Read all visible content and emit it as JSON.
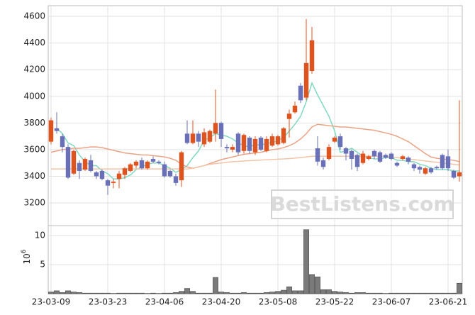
{
  "chart_data": {
    "type": "candlestick",
    "categories": [
      "23-03-09",
      null,
      null,
      null,
      null,
      null,
      null,
      null,
      null,
      null,
      "23-03-23",
      null,
      null,
      null,
      null,
      null,
      null,
      null,
      null,
      null,
      "23-04-06",
      null,
      null,
      null,
      null,
      null,
      null,
      null,
      null,
      null,
      "23-04-20",
      null,
      null,
      null,
      null,
      null,
      null,
      null,
      null,
      null,
      "23-05-08",
      null,
      null,
      null,
      null,
      null,
      null,
      null,
      null,
      null,
      "23-05-22",
      null,
      null,
      null,
      null,
      null,
      null,
      null,
      null,
      null,
      "23-06-07",
      null,
      null,
      null,
      null,
      null,
      null,
      null,
      null,
      null,
      "23-06-21",
      null,
      null
    ],
    "open": [
      3660,
      3760,
      3700,
      3620,
      3420,
      3500,
      3450,
      3520,
      3430,
      3440,
      3370,
      3350,
      3380,
      3410,
      3440,
      3480,
      3520,
      3460,
      3530,
      3510,
      3490,
      3440,
      3400,
      3370,
      3720,
      3650,
      3720,
      3640,
      3660,
      3720,
      3800,
      3620,
      3600,
      3720,
      3590,
      3690,
      3580,
      3690,
      3590,
      3630,
      3640,
      3650,
      3830,
      3880,
      4080,
      3990,
      4190,
      3610,
      3520,
      3530,
      3660,
      3700,
      3610,
      3590,
      3560,
      3500,
      3530,
      3590,
      3580,
      3560,
      3570,
      3500,
      3530,
      3540,
      3490,
      3470,
      3420,
      3460,
      3470,
      3560,
      3550,
      3440,
      3400
    ],
    "high": [
      3840,
      3880,
      3720,
      3640,
      3600,
      3520,
      3540,
      3560,
      3440,
      3450,
      3380,
      3380,
      3440,
      3470,
      3500,
      3520,
      3540,
      3520,
      3550,
      3520,
      3510,
      3450,
      3420,
      3590,
      3820,
      3820,
      3740,
      3760,
      3750,
      4050,
      3810,
      3640,
      3640,
      3730,
      3720,
      3700,
      3700,
      3700,
      3700,
      3720,
      3710,
      3770,
      3900,
      3960,
      4100,
      4580,
      4520,
      3700,
      3540,
      3640,
      3700,
      3720,
      3620,
      3600,
      3570,
      3590,
      3560,
      3600,
      3590,
      3570,
      3580,
      3510,
      3560,
      3550,
      3500,
      3480,
      3470,
      3470,
      3480,
      3570,
      3600,
      3450,
      3970
    ],
    "low": [
      3640,
      3720,
      3580,
      3380,
      3410,
      3380,
      3440,
      3430,
      3380,
      3370,
      3260,
      3310,
      3310,
      3380,
      3430,
      3460,
      3450,
      3450,
      3500,
      3490,
      3390,
      3390,
      3330,
      3320,
      3640,
      3640,
      3620,
      3620,
      3650,
      3660,
      3620,
      3580,
      3580,
      3560,
      3570,
      3570,
      3560,
      3590,
      3580,
      3620,
      3630,
      3640,
      3690,
      3870,
      3950,
      3970,
      4170,
      3480,
      3450,
      3520,
      3650,
      3600,
      3520,
      3450,
      3440,
      3490,
      3520,
      3530,
      3500,
      3530,
      3520,
      3470,
      3520,
      3490,
      3440,
      3420,
      3410,
      3420,
      3450,
      3450,
      3440,
      3380,
      3360
    ],
    "close": [
      3820,
      3740,
      3620,
      3390,
      3590,
      3440,
      3530,
      3440,
      3400,
      3380,
      3330,
      3360,
      3420,
      3460,
      3490,
      3510,
      3460,
      3510,
      3510,
      3500,
      3400,
      3400,
      3350,
      3580,
      3650,
      3720,
      3660,
      3730,
      3740,
      3800,
      3680,
      3610,
      3620,
      3580,
      3710,
      3590,
      3680,
      3600,
      3680,
      3700,
      3700,
      3760,
      3870,
      3930,
      3970,
      4250,
      4420,
      3510,
      3470,
      3620,
      3690,
      3620,
      3570,
      3530,
      3470,
      3570,
      3550,
      3550,
      3510,
      3540,
      3530,
      3480,
      3550,
      3510,
      3460,
      3450,
      3460,
      3430,
      3460,
      3460,
      3460,
      3390,
      3430
    ],
    "up_color": "#e0531f",
    "down_color": "#6a70b8",
    "ma": [
      {
        "color": "#7fd8c0",
        "values": [
          null,
          3760,
          3720,
          3650,
          3630,
          3560,
          3510,
          3480,
          3480,
          3440,
          3420,
          3380,
          3380,
          3390,
          3410,
          3450,
          3470,
          3490,
          3500,
          3500,
          3480,
          3460,
          3430,
          3450,
          3480,
          3540,
          3590,
          3670,
          3690,
          3720,
          3710,
          3700,
          3680,
          3650,
          3630,
          3620,
          3640,
          3630,
          3650,
          3650,
          3670,
          3690,
          3740,
          3790,
          3850,
          3960,
          4100,
          4010,
          3930,
          3850,
          3740,
          3580,
          3590,
          3610,
          3580,
          3550,
          3540,
          3530,
          3530,
          3540,
          3540,
          3520,
          3520,
          3510,
          3510,
          3490,
          3480,
          3460,
          3450,
          3450,
          3450,
          3440,
          3440
        ]
      },
      {
        "color": "#eba285",
        "values": [
          3580,
          3590,
          3600,
          3605,
          3610,
          3610,
          3615,
          3620,
          3620,
          3615,
          3605,
          3595,
          3585,
          3575,
          3570,
          3565,
          3560,
          3560,
          3555,
          3550,
          3545,
          3535,
          3520,
          3490,
          3470,
          3460,
          3470,
          3480,
          3495,
          3510,
          3525,
          3535,
          3545,
          3555,
          3565,
          3570,
          3575,
          3580,
          3590,
          3600,
          3605,
          3615,
          3630,
          3650,
          3680,
          3720,
          3770,
          3790,
          3785,
          3780,
          3775,
          3770,
          3770,
          3765,
          3760,
          3755,
          3750,
          3745,
          3735,
          3725,
          3715,
          3700,
          3680,
          3660,
          3630,
          3600,
          3570,
          3545,
          3535,
          3530,
          3525,
          3520,
          3510
        ]
      },
      {
        "color": "#f3c3a8",
        "values": [
          3455,
          3455,
          3455,
          3455,
          3455,
          3455,
          3455,
          3455,
          3455,
          3455,
          3455,
          3455,
          3455,
          3455,
          3455,
          3455,
          3455,
          3455,
          3455,
          3455,
          3455,
          3455,
          3455,
          3455,
          3455,
          3460,
          3470,
          3480,
          3490,
          3495,
          3500,
          3505,
          3510,
          3512,
          3515,
          3518,
          3520,
          3522,
          3524,
          3526,
          3528,
          3530,
          3533,
          3536,
          3540,
          3545,
          3550,
          3550,
          3550,
          3550,
          3550,
          3550,
          3550,
          3550,
          3550,
          3550,
          3550,
          3550,
          3550,
          3550,
          3545,
          3540,
          3535,
          3530,
          3525,
          3520,
          3515,
          3510,
          3505,
          3500,
          3495,
          3490,
          3485
        ]
      }
    ],
    "ylim": [
      3030,
      4680
    ],
    "yticks": [
      3200,
      3400,
      3600,
      3800,
      4000,
      4200,
      4400,
      4600
    ],
    "volume": [
      0.3,
      0.5,
      0.2,
      0.5,
      0.3,
      0.2,
      0.1,
      0.1,
      0.1,
      0.1,
      0.1,
      0.05,
      0.1,
      0.1,
      0.1,
      0.1,
      0.1,
      0.05,
      0.1,
      0.05,
      0.1,
      0.1,
      0.2,
      0.4,
      0.9,
      0.4,
      0.1,
      0.1,
      0.1,
      2.8,
      0.3,
      0.2,
      0.1,
      0.1,
      0.2,
      0.1,
      0.1,
      0.1,
      0.2,
      0.3,
      0.4,
      0.6,
      1.2,
      0.5,
      0.5,
      11.0,
      3.3,
      2.9,
      0.7,
      0.7,
      0.4,
      0.3,
      0.2,
      0.1,
      0.2,
      0.2,
      0.1,
      0.1,
      0.1,
      0.05,
      0.1,
      0.1,
      0.1,
      0.1,
      0.1,
      0.1,
      0.1,
      0.1,
      0.1,
      0.1,
      0.1,
      0.1,
      1.8
    ],
    "volume_color": "#7a7a7a",
    "y2lim": [
      0,
      11.7
    ],
    "y2ticks": [
      5,
      10
    ],
    "y2label": {
      "base": "10",
      "exponent": "6"
    },
    "grid": true,
    "watermark": "BestListens.com"
  }
}
